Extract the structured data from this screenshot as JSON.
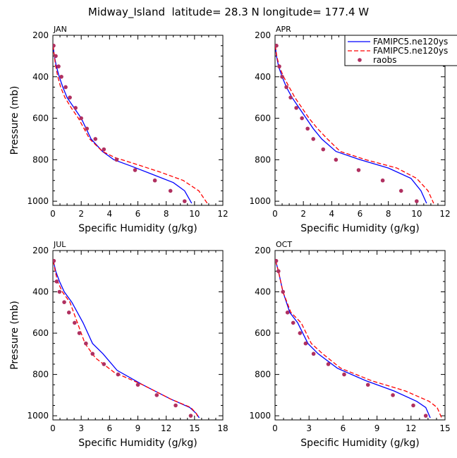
{
  "figure": {
    "title": "Midway_Island  latitude= 28.3 N longitude= 177.4 W"
  },
  "legend": {
    "placement": "top-right of APR panel",
    "entries": [
      {
        "label": "FAMIPC5.ne120ys",
        "color": "#0000ff",
        "style": "solid line"
      },
      {
        "label": "FAMIPC5.ne120ys",
        "color": "#ff0000",
        "style": "dashed line"
      },
      {
        "label": "raobs",
        "color": "#b03060",
        "style": "dots"
      }
    ]
  },
  "chart_data": [
    {
      "type": "line",
      "panel": "JAN",
      "xlabel": "Specific Humidity (g/kg)",
      "ylabel": "Pressure (mb)",
      "xlim": [
        0,
        12
      ],
      "ylim": [
        1020,
        200
      ],
      "xticks": [
        0,
        2,
        4,
        6,
        8,
        10,
        12
      ],
      "xtick_labels": [
        "0",
        "2",
        "4",
        "6",
        "8",
        "10",
        "12"
      ],
      "yticks": [
        200,
        400,
        600,
        800,
        1000
      ],
      "grid": false,
      "series": [
        {
          "name": "FAMIPC5.ne120ys",
          "color": "#0000ff",
          "dash": "solid",
          "x": [
            0.02,
            0.1,
            0.25,
            0.45,
            0.7,
            1.0,
            1.5,
            2.0,
            2.7,
            3.5,
            4.3,
            5.5,
            7.0,
            8.5,
            9.3,
            9.8
          ],
          "y": [
            250,
            300,
            350,
            400,
            450,
            500,
            550,
            600,
            700,
            760,
            800,
            830,
            870,
            910,
            950,
            1010
          ]
        },
        {
          "name": "FAMIPC5.ne120ys",
          "color": "#ff0000",
          "dash": "dashed",
          "x": [
            0.02,
            0.1,
            0.2,
            0.35,
            0.55,
            0.85,
            1.3,
            1.8,
            2.6,
            3.5,
            4.4,
            5.8,
            7.6,
            9.2,
            10.3,
            10.9
          ],
          "y": [
            250,
            300,
            350,
            400,
            450,
            500,
            550,
            600,
            700,
            760,
            790,
            820,
            860,
            900,
            950,
            1010
          ]
        },
        {
          "name": "raobs",
          "color": "#b03060",
          "dash": "dots",
          "x": [
            0.05,
            0.2,
            0.4,
            0.6,
            0.9,
            1.2,
            1.6,
            2.0,
            2.4,
            3.0,
            3.6,
            4.5,
            5.8,
            7.2,
            8.3,
            9.3
          ],
          "y": [
            250,
            300,
            350,
            400,
            450,
            500,
            550,
            600,
            650,
            700,
            750,
            800,
            850,
            900,
            950,
            1000
          ]
        }
      ]
    },
    {
      "type": "line",
      "panel": "APR",
      "xlabel": "Specific Humidity (g/kg)",
      "ylabel": "Pressure (mb)",
      "xlim": [
        0,
        12
      ],
      "ylim": [
        1020,
        200
      ],
      "xticks": [
        0,
        2,
        4,
        6,
        8,
        10,
        12
      ],
      "xtick_labels": [
        "0",
        "2",
        "4",
        "6",
        "8",
        "10",
        "12"
      ],
      "yticks": [
        200,
        400,
        600,
        800,
        1000
      ],
      "grid": false,
      "series": [
        {
          "name": "FAMIPC5.ne120ys",
          "color": "#0000ff",
          "dash": "solid",
          "x": [
            0.02,
            0.1,
            0.25,
            0.5,
            0.8,
            1.2,
            1.7,
            2.2,
            2.7,
            3.3,
            4.3,
            6.0,
            8.0,
            9.6,
            10.3,
            10.7
          ],
          "y": [
            250,
            300,
            350,
            400,
            450,
            500,
            550,
            600,
            650,
            700,
            760,
            800,
            840,
            890,
            950,
            1010
          ]
        },
        {
          "name": "FAMIPC5.ne120ys",
          "color": "#ff0000",
          "dash": "dashed",
          "x": [
            0.02,
            0.12,
            0.3,
            0.6,
            1.0,
            1.4,
            1.9,
            2.4,
            3.0,
            3.7,
            4.6,
            6.4,
            8.6,
            10.0,
            10.8,
            11.2
          ],
          "y": [
            250,
            300,
            350,
            400,
            450,
            500,
            550,
            600,
            650,
            700,
            760,
            800,
            840,
            890,
            950,
            1010
          ]
        },
        {
          "name": "raobs",
          "color": "#b03060",
          "dash": "dots",
          "x": [
            0.1,
            0.3,
            0.5,
            0.8,
            1.1,
            1.5,
            1.9,
            2.3,
            2.7,
            3.4,
            4.3,
            5.9,
            7.6,
            8.9,
            10.0
          ],
          "y": [
            250,
            350,
            400,
            450,
            500,
            550,
            600,
            650,
            700,
            750,
            800,
            850,
            900,
            950,
            1000
          ]
        }
      ]
    },
    {
      "type": "line",
      "panel": "JUL",
      "xlabel": "Specific Humidity (g/kg)",
      "ylabel": "Pressure (mb)",
      "xlim": [
        0,
        18
      ],
      "ylim": [
        1020,
        200
      ],
      "xticks": [
        0,
        3,
        6,
        9,
        12,
        15,
        18
      ],
      "xtick_labels": [
        "0",
        "3",
        "6",
        "9",
        "12",
        "15",
        "18"
      ],
      "yticks": [
        200,
        400,
        600,
        800,
        1000
      ],
      "grid": false,
      "series": [
        {
          "name": "FAMIPC5.ne120ys",
          "color": "#0000ff",
          "dash": "solid",
          "x": [
            0.05,
            0.3,
            0.7,
            1.2,
            2.0,
            3.2,
            4.2,
            5.3,
            6.8,
            9.5,
            12.5,
            14.5,
            15.2,
            15.5
          ],
          "y": [
            250,
            300,
            350,
            400,
            450,
            550,
            650,
            700,
            780,
            850,
            920,
            960,
            990,
            1010
          ]
        },
        {
          "name": "FAMIPC5.ne120ys",
          "color": "#ff0000",
          "dash": "dashed",
          "x": [
            0.05,
            0.25,
            0.5,
            1.0,
            1.8,
            2.6,
            3.4,
            4.5,
            6.5,
            9.5,
            12.5,
            14.6,
            15.2,
            15.4
          ],
          "y": [
            250,
            300,
            350,
            400,
            450,
            550,
            650,
            720,
            790,
            850,
            920,
            960,
            990,
            1010
          ]
        },
        {
          "name": "raobs",
          "color": "#b03060",
          "dash": "dots",
          "x": [
            0.1,
            0.4,
            0.7,
            1.2,
            1.7,
            2.3,
            2.8,
            3.5,
            4.2,
            5.4,
            6.9,
            9.0,
            11.0,
            13.0,
            14.6
          ],
          "y": [
            250,
            350,
            400,
            450,
            500,
            550,
            600,
            650,
            700,
            750,
            800,
            850,
            900,
            950,
            1000
          ]
        }
      ]
    },
    {
      "type": "line",
      "panel": "OCT",
      "xlabel": "Specific Humidity (g/kg)",
      "ylabel": "Pressure (mb)",
      "xlim": [
        0,
        15
      ],
      "ylim": [
        1020,
        200
      ],
      "xticks": [
        0,
        3,
        6,
        9,
        12,
        15
      ],
      "xtick_labels": [
        "0",
        "3",
        "6",
        "9",
        "12",
        "15"
      ],
      "yticks": [
        200,
        400,
        600,
        800,
        1000
      ],
      "grid": false,
      "series": [
        {
          "name": "FAMIPC5.ne120ys",
          "color": "#0000ff",
          "dash": "solid",
          "x": [
            0.05,
            0.3,
            0.7,
            1.3,
            2.0,
            2.9,
            3.8,
            5.5,
            8.0,
            10.5,
            12.5,
            13.3,
            13.7
          ],
          "y": [
            250,
            300,
            400,
            500,
            550,
            650,
            700,
            770,
            830,
            880,
            930,
            960,
            1010
          ]
        },
        {
          "name": "FAMIPC5.ne120ys",
          "color": "#ff0000",
          "dash": "dashed",
          "x": [
            0.05,
            0.3,
            0.7,
            1.4,
            2.3,
            3.2,
            4.2,
            5.8,
            8.5,
            11.5,
            13.6,
            14.3,
            14.7
          ],
          "y": [
            250,
            300,
            400,
            500,
            550,
            650,
            700,
            770,
            830,
            880,
            930,
            960,
            1010
          ]
        },
        {
          "name": "raobs",
          "color": "#b03060",
          "dash": "dots",
          "x": [
            0.1,
            0.3,
            0.7,
            1.1,
            1.6,
            2.2,
            2.7,
            3.4,
            4.7,
            6.1,
            8.2,
            10.4,
            12.2,
            13.3
          ],
          "y": [
            250,
            300,
            400,
            500,
            550,
            600,
            650,
            700,
            750,
            800,
            850,
            900,
            950,
            1000
          ]
        }
      ]
    }
  ]
}
